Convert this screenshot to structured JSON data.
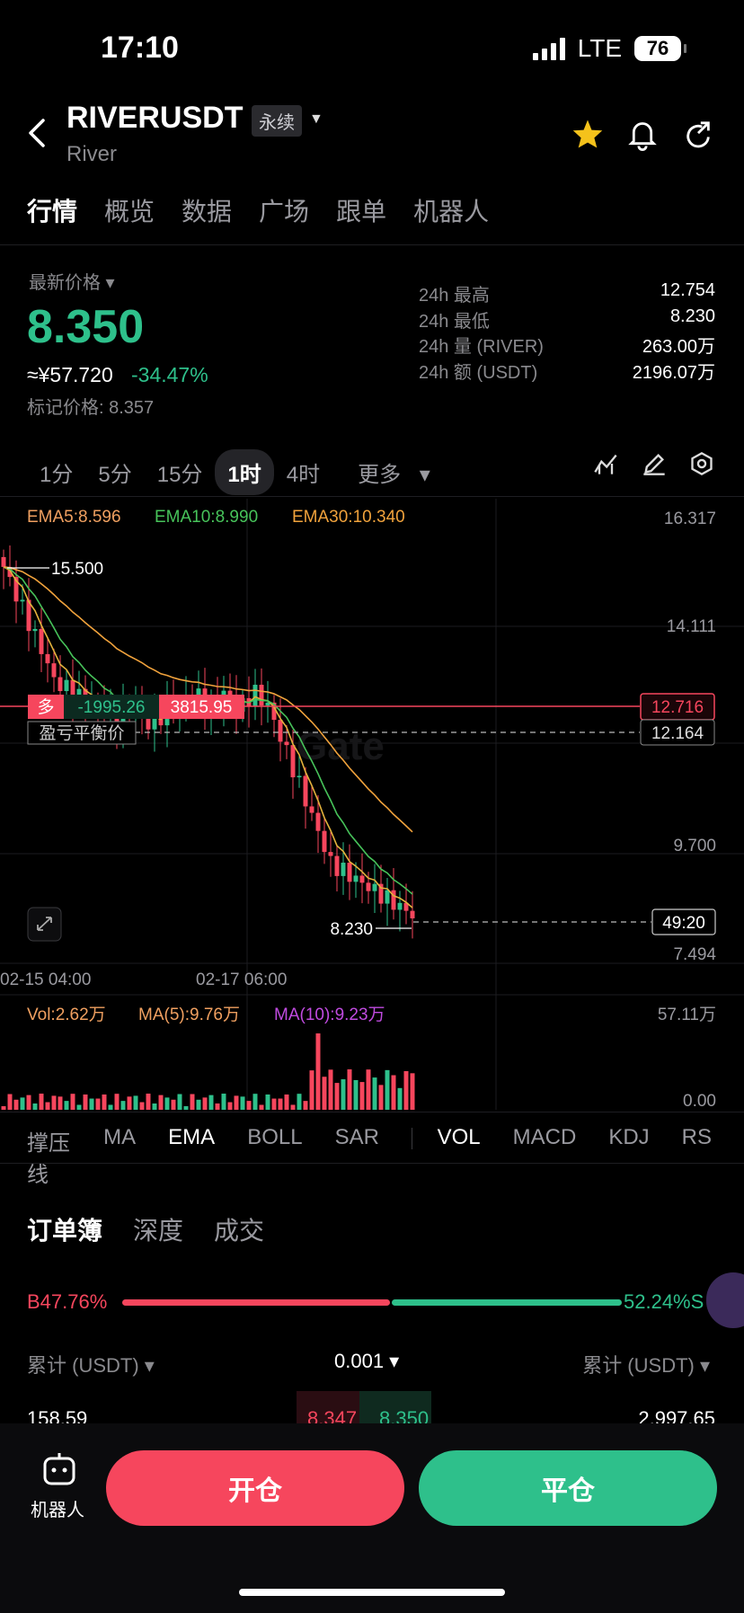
{
  "status_bar": {
    "time": "17:10",
    "network": "LTE",
    "battery": "76"
  },
  "header": {
    "back_icon": "chevron-left-icon",
    "symbol": "RIVERUSDT",
    "contract_type": "永续",
    "name": "River",
    "icons": [
      "star-icon",
      "bell-icon",
      "share-icon"
    ]
  },
  "tabs": [
    "行情",
    "概览",
    "数据",
    "广场",
    "跟单",
    "机器人"
  ],
  "price": {
    "label": "最新价格",
    "last": "8.350",
    "cny": "≈¥57.720",
    "change": "-34.47%",
    "mark": "标记价格: 8.357"
  },
  "stats": [
    {
      "key": "24h  最高",
      "value": "12.754"
    },
    {
      "key": "24h  最低",
      "value": "8.230"
    },
    {
      "key": "24h  量 (RIVER)",
      "value": "263.00万"
    },
    {
      "key": "24h  额 (USDT)",
      "value": "2196.07万"
    }
  ],
  "timeframes": [
    "1分",
    "5分",
    "15分",
    "1时",
    "4时",
    "更多"
  ],
  "timeframe_active": "1时",
  "chart": {
    "ema": {
      "ema5": "EMA5:8.596",
      "ema10": "EMA10:8.990",
      "ema30": "EMA30:10.340"
    },
    "y_ticks": [
      "16.317",
      "14.111",
      "9.700",
      "7.494"
    ],
    "high_label": "15.500",
    "low_label": "8.230",
    "position": {
      "side": "多",
      "pnl": "-1995.26",
      "value": "3815.95",
      "price": "12.716"
    },
    "breakeven": {
      "label": "盈亏平衡价",
      "price": "12.164"
    },
    "countdown": "49:20",
    "x_ticks": [
      "02-15 04:00",
      "02-17 06:00"
    ],
    "vol": {
      "vol": "Vol:2.62万",
      "ma5": "MA(5):9.76万",
      "ma10": "MA(10):9.23万",
      "max": "57.11万",
      "min": "0.00"
    },
    "colors": {
      "up": "#2ec08b",
      "down": "#f6465d",
      "ema5": "#e3b23c",
      "ema10": "#47c35a",
      "ema30": "#f0a23c"
    }
  },
  "indicators": {
    "main": [
      "撑压线",
      "MA",
      "EMA",
      "BOLL",
      "SAR"
    ],
    "sub": [
      "VOL",
      "MACD",
      "KDJ",
      "RS"
    ]
  },
  "orderbook": {
    "tabs": [
      "订单簿",
      "深度",
      "成交"
    ],
    "buy_ratio": "B47.76%",
    "sell_ratio": "52.24%",
    "sell_suffix": "S",
    "head_left": "累计 (USDT)",
    "head_mid": "0.001",
    "head_right": "累计 (USDT)",
    "row": {
      "left": "158.59",
      "bid": "8.347",
      "ask": "8.350",
      "right": "2,997.65"
    }
  },
  "bottom": {
    "bot_label": "机器人",
    "open": "开仓",
    "close": "平仓"
  }
}
